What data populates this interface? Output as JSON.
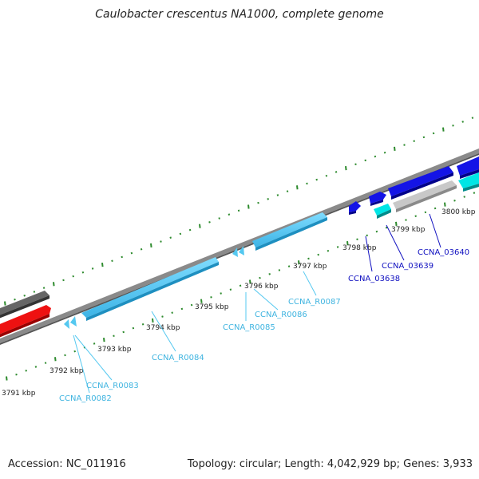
{
  "title": "Caulobacter crescentus NA1000, complete genome",
  "footer": {
    "accession": "Accession: NC_011916",
    "summary": "Topology: circular; Length: 4,042,929 bp; Genes: 3,933"
  },
  "colors": {
    "backbone": "#8a8a8a",
    "tick": "#2e8b2e",
    "rna": "#54c8f0",
    "rna_label": "#3fb4e0",
    "cds": "#1414e6",
    "cds_label": "#1010c0",
    "cds_alt": "#00e5e5",
    "pseudo": "#c8c8c8",
    "dark_feature": "#666666",
    "red_feature": "#ee1111"
  },
  "kbp_labels": [
    "3791 kbp",
    "3792 kbp",
    "3793 kbp",
    "3794 kbp",
    "3795 kbp",
    "3796 kbp",
    "3797 kbp",
    "3798 kbp",
    "3799 kbp",
    "3800 kbp"
  ],
  "gene_labels": [
    {
      "name": "CCNA_R0082",
      "type": "rna"
    },
    {
      "name": "CCNA_R0083",
      "type": "rna"
    },
    {
      "name": "CCNA_R0084",
      "type": "rna"
    },
    {
      "name": "CCNA_R0085",
      "type": "rna"
    },
    {
      "name": "CCNA_R0086",
      "type": "rna"
    },
    {
      "name": "CCNA_R0087",
      "type": "rna"
    },
    {
      "name": "CCNA_03638",
      "type": "cds"
    },
    {
      "name": "CCNA_03639",
      "type": "cds"
    },
    {
      "name": "CCNA_03640",
      "type": "cds"
    }
  ]
}
